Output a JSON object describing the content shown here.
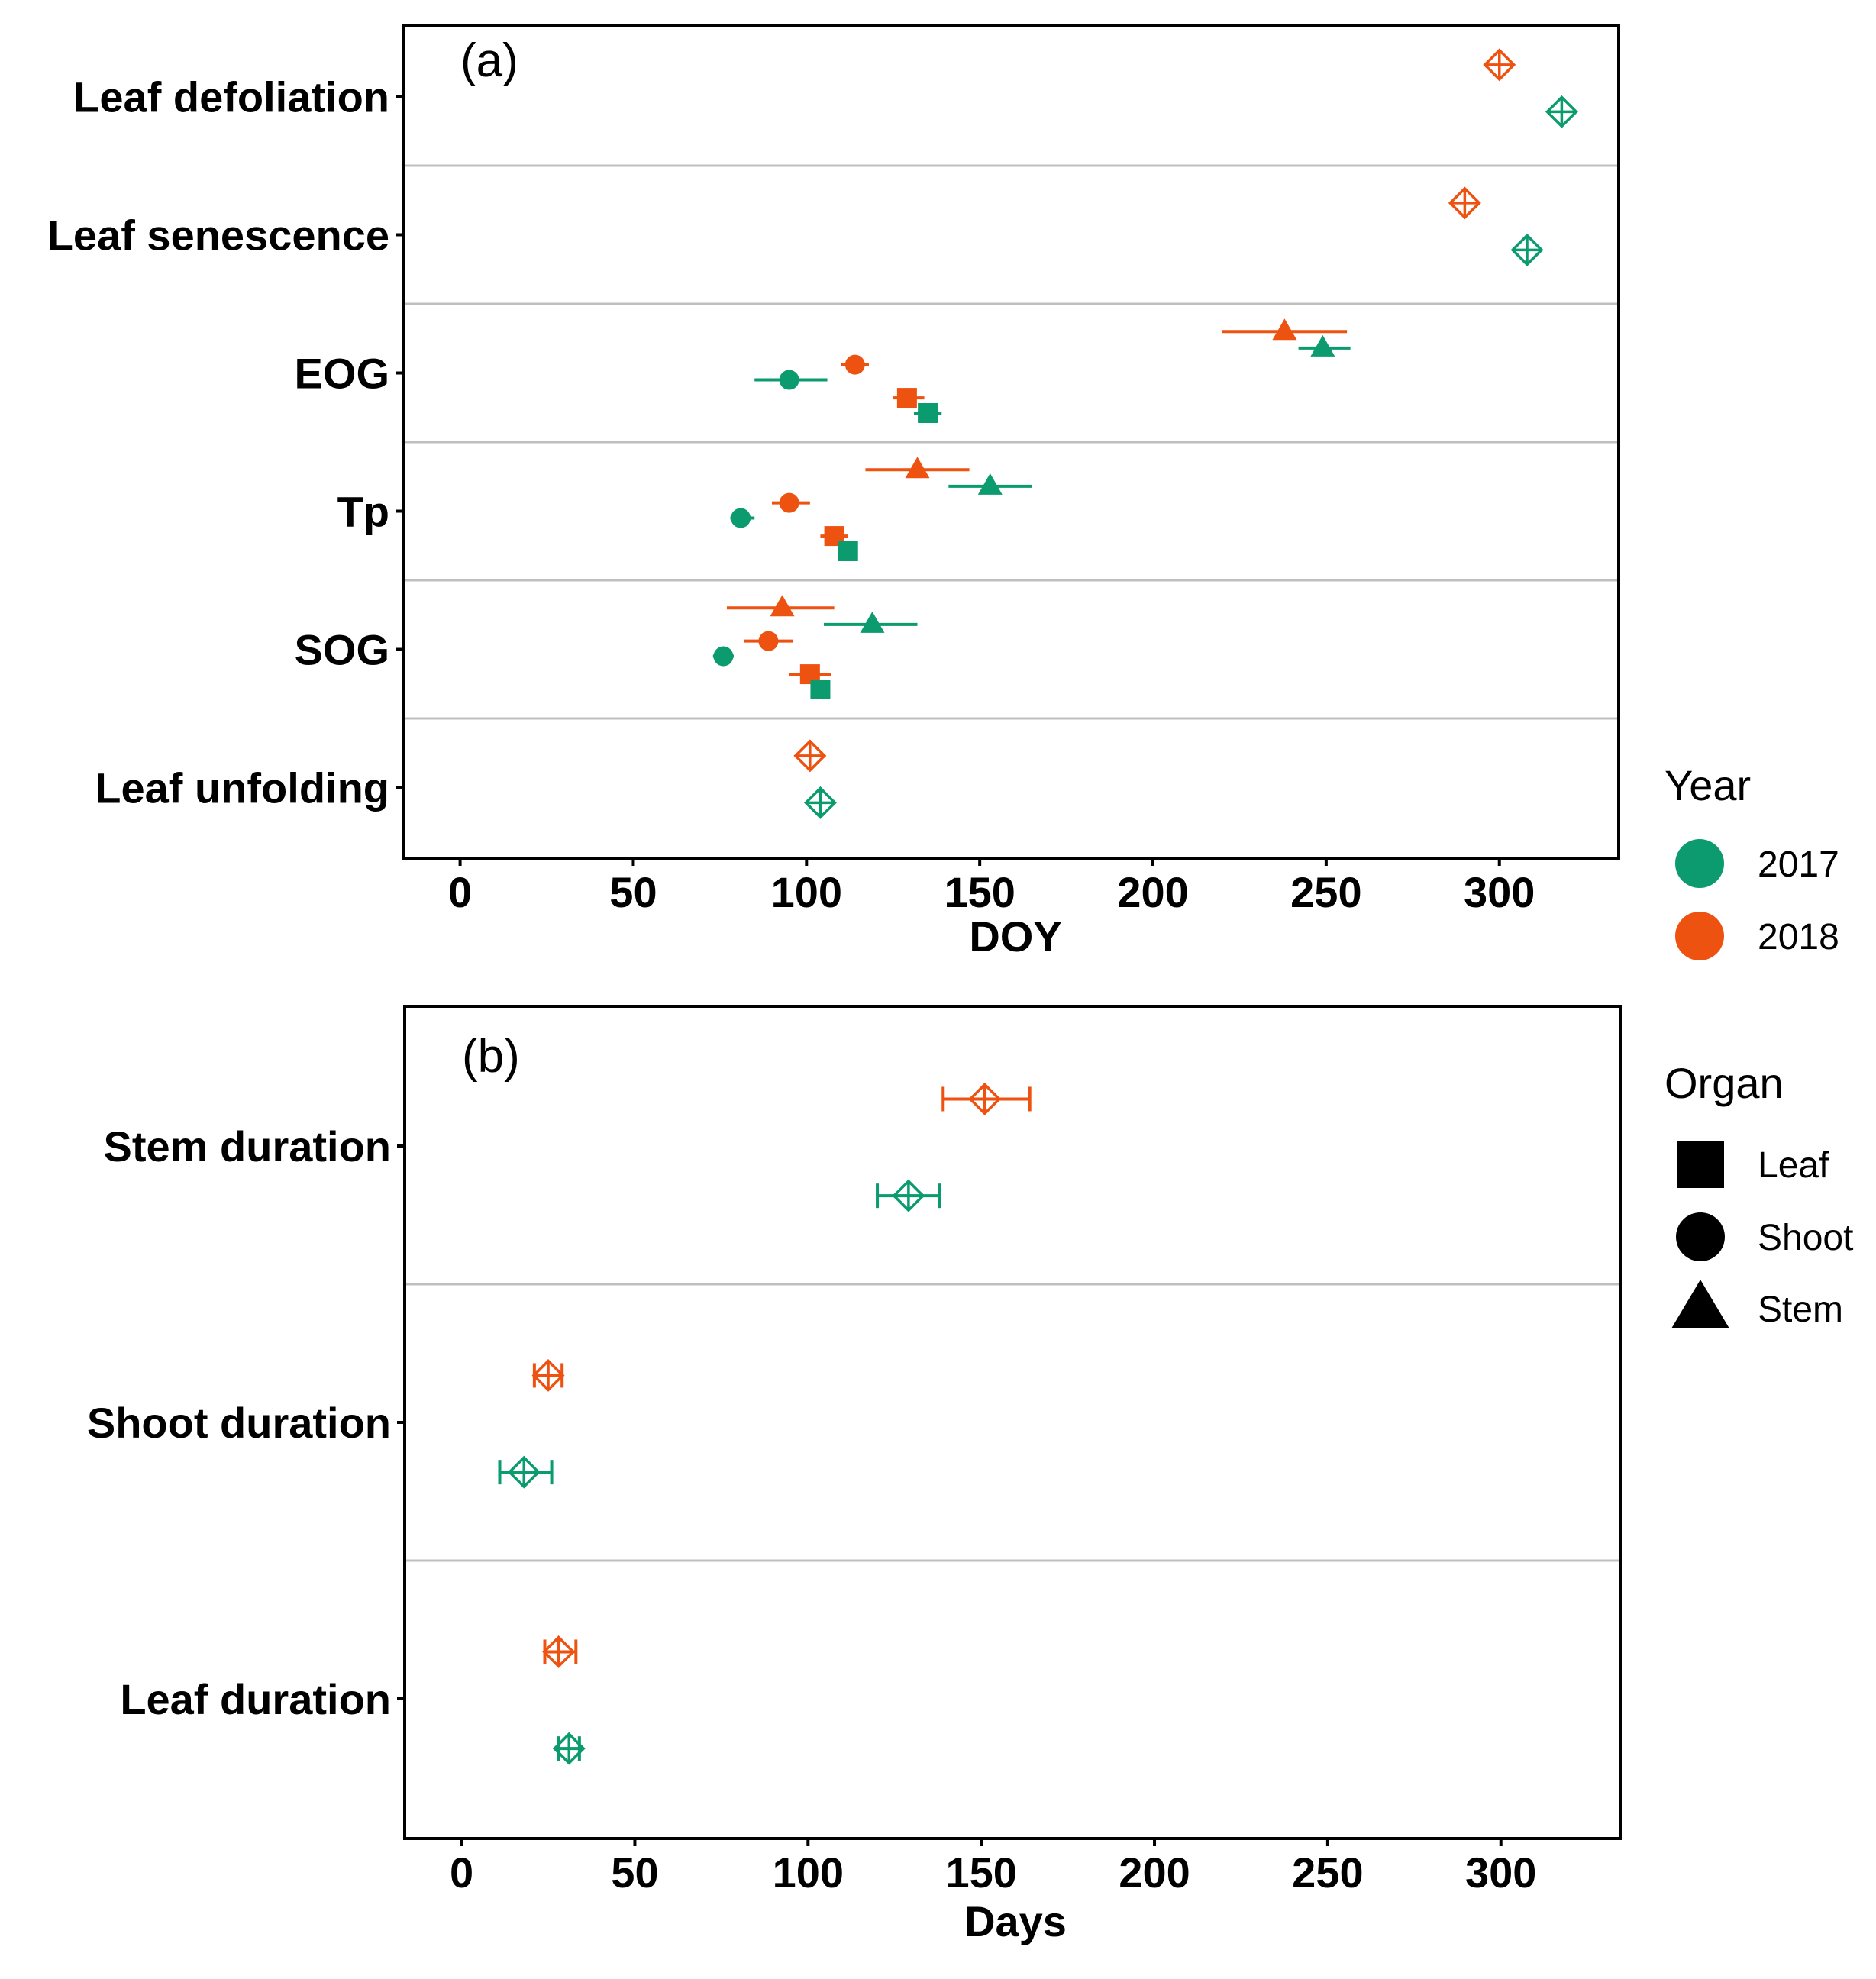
{
  "colors": {
    "y2017": "#0b9b6e",
    "y2018": "#ee5210",
    "sep": "#bfbfbf",
    "frame": "#000000"
  },
  "chart_data": [
    {
      "panel": "(a)",
      "type": "scatter",
      "xlabel": "DOY",
      "xlim": [
        -16,
        334
      ],
      "xticks": [
        0,
        50,
        100,
        150,
        200,
        250,
        300
      ],
      "categories": [
        "Leaf defoliation",
        "Leaf senescence",
        "EOG",
        "Tp",
        "SOG",
        "Leaf unfolding"
      ],
      "points": [
        {
          "cat": "Leaf defoliation",
          "year": "2018",
          "organ": "Observed",
          "x": 300,
          "err": null
        },
        {
          "cat": "Leaf defoliation",
          "year": "2017",
          "organ": "Observed",
          "x": 318,
          "err": null
        },
        {
          "cat": "Leaf senescence",
          "year": "2018",
          "organ": "Observed",
          "x": 290,
          "err": null
        },
        {
          "cat": "Leaf senescence",
          "year": "2017",
          "organ": "Observed",
          "x": 308,
          "err": null
        },
        {
          "cat": "EOG",
          "year": "2018",
          "organ": "Stem",
          "x": 238,
          "err": [
            220,
            256
          ]
        },
        {
          "cat": "EOG",
          "year": "2017",
          "organ": "Stem",
          "x": 249,
          "err": [
            242,
            257
          ]
        },
        {
          "cat": "EOG",
          "year": "2018",
          "organ": "Shoot",
          "x": 114,
          "err": [
            110,
            118
          ]
        },
        {
          "cat": "EOG",
          "year": "2017",
          "organ": "Shoot",
          "x": 95,
          "err": [
            85,
            106
          ]
        },
        {
          "cat": "EOG",
          "year": "2018",
          "organ": "Leaf",
          "x": 129,
          "err": [
            125,
            134
          ]
        },
        {
          "cat": "EOG",
          "year": "2017",
          "organ": "Leaf",
          "x": 135,
          "err": [
            131,
            139
          ]
        },
        {
          "cat": "Tp",
          "year": "2018",
          "organ": "Stem",
          "x": 132,
          "err": [
            117,
            147
          ]
        },
        {
          "cat": "Tp",
          "year": "2017",
          "organ": "Stem",
          "x": 153,
          "err": [
            141,
            165
          ]
        },
        {
          "cat": "Tp",
          "year": "2018",
          "organ": "Shoot",
          "x": 95,
          "err": [
            90,
            101
          ]
        },
        {
          "cat": "Tp",
          "year": "2017",
          "organ": "Shoot",
          "x": 81,
          "err": [
            78,
            85
          ]
        },
        {
          "cat": "Tp",
          "year": "2018",
          "organ": "Leaf",
          "x": 108,
          "err": [
            104,
            112
          ]
        },
        {
          "cat": "Tp",
          "year": "2017",
          "organ": "Leaf",
          "x": 112,
          "err": [
            110,
            114
          ]
        },
        {
          "cat": "SOG",
          "year": "2018",
          "organ": "Stem",
          "x": 93,
          "err": [
            77,
            108
          ]
        },
        {
          "cat": "SOG",
          "year": "2017",
          "organ": "Stem",
          "x": 119,
          "err": [
            105,
            132
          ]
        },
        {
          "cat": "SOG",
          "year": "2018",
          "organ": "Shoot",
          "x": 89,
          "err": [
            82,
            96
          ]
        },
        {
          "cat": "SOG",
          "year": "2017",
          "organ": "Shoot",
          "x": 76,
          "err": [
            73,
            79
          ]
        },
        {
          "cat": "SOG",
          "year": "2018",
          "organ": "Leaf",
          "x": 101,
          "err": [
            95,
            107
          ]
        },
        {
          "cat": "SOG",
          "year": "2017",
          "organ": "Leaf",
          "x": 104,
          "err": [
            102,
            106
          ]
        },
        {
          "cat": "Leaf unfolding",
          "year": "2018",
          "organ": "Observed",
          "x": 101,
          "err": null
        },
        {
          "cat": "Leaf unfolding",
          "year": "2017",
          "organ": "Observed",
          "x": 104,
          "err": null
        }
      ]
    },
    {
      "panel": "(b)",
      "type": "scatter",
      "xlabel": "Days",
      "xlim": [
        -16,
        334
      ],
      "xticks": [
        0,
        50,
        100,
        150,
        200,
        250,
        300
      ],
      "categories": [
        "Stem duration",
        "Shoot duration",
        "Leaf duration"
      ],
      "points": [
        {
          "cat": "Stem duration",
          "year": "2018",
          "x": 151,
          "err": [
            139,
            164
          ]
        },
        {
          "cat": "Stem duration",
          "year": "2017",
          "x": 129,
          "err": [
            120,
            138
          ]
        },
        {
          "cat": "Shoot duration",
          "year": "2018",
          "x": 25,
          "err": [
            21,
            29
          ]
        },
        {
          "cat": "Shoot duration",
          "year": "2017",
          "x": 18,
          "err": [
            11,
            26
          ]
        },
        {
          "cat": "Leaf duration",
          "year": "2018",
          "x": 28,
          "err": [
            24,
            33
          ]
        },
        {
          "cat": "Leaf duration",
          "year": "2017",
          "x": 31,
          "err": [
            28,
            34
          ]
        }
      ]
    }
  ],
  "legend": {
    "year_title": "Year",
    "years": [
      "2017",
      "2018"
    ],
    "organ_title": "Organ",
    "organs": [
      "Leaf",
      "Shoot",
      "Stem"
    ]
  }
}
